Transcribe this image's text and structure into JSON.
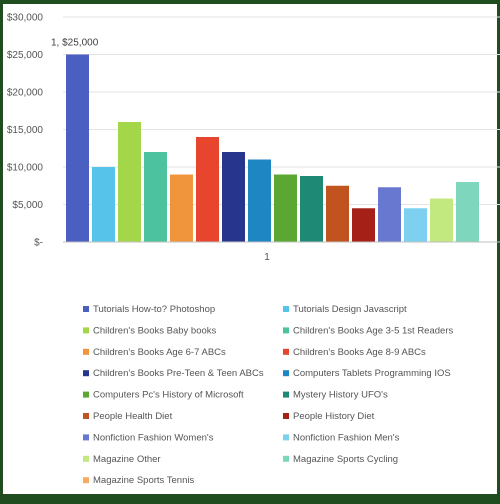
{
  "chart_data": {
    "type": "bar",
    "categories": [
      "1"
    ],
    "ylim": [
      0,
      30000
    ],
    "yticks": [
      {
        "value": 0,
        "label": "$-"
      },
      {
        "value": 5000,
        "label": "$5,000"
      },
      {
        "value": 10000,
        "label": "$10,000"
      },
      {
        "value": 15000,
        "label": "$15,000"
      },
      {
        "value": 20000,
        "label": "$20,000"
      },
      {
        "value": 25000,
        "label": "$25,000"
      },
      {
        "value": 30000,
        "label": "$30,000"
      }
    ],
    "grid": true,
    "legend_position": "bottom",
    "data_label": "1, $25,000",
    "series": [
      {
        "name": "Tutorials  How-to?  Photoshop",
        "values": [
          25000
        ],
        "color": "#4a5fc1"
      },
      {
        "name": "Tutorials  Design  Javascript",
        "values": [
          10000
        ],
        "color": "#55c3ea"
      },
      {
        "name": "Children's Books  Baby books",
        "values": [
          16000
        ],
        "color": "#a4d64a"
      },
      {
        "name": "Children's Books  Age 3-5  1st Readers",
        "values": [
          12000
        ],
        "color": "#4cc39e"
      },
      {
        "name": "Children's Books  Age 6-7  ABCs",
        "values": [
          9000
        ],
        "color": "#f0953b"
      },
      {
        "name": "Children's Books  Age 8-9   ABCs",
        "values": [
          14000
        ],
        "color": "#e8452f"
      },
      {
        "name": "Children's Books  Pre-Teen & Teen   ABCs",
        "values": [
          12000
        ],
        "color": "#27358c"
      },
      {
        "name": "Computers  Tablets   Programming IOS",
        "values": [
          11000
        ],
        "color": "#1f86c4"
      },
      {
        "name": "Computers  Pc's   History of Microsoft",
        "values": [
          9000
        ],
        "color": "#5aa832"
      },
      {
        "name": "Mystery  History  UFO's",
        "values": [
          8800
        ],
        "color": "#1e8a76"
      },
      {
        "name": "People  Health   Diet",
        "values": [
          7500
        ],
        "color": "#c1531f"
      },
      {
        "name": "People  History   Diet",
        "values": [
          4500
        ],
        "color": "#a52118"
      },
      {
        "name": "Nonfiction  Fashion   Women's",
        "values": [
          7300
        ],
        "color": "#6877cf"
      },
      {
        "name": "Nonfiction  Fashion   Men's",
        "values": [
          4500
        ],
        "color": "#7ed0f0"
      },
      {
        "name": "Magazine  Other",
        "values": [
          5800
        ],
        "color": "#c2e880"
      },
      {
        "name": "Magazine  Sports   Cycling",
        "values": [
          8000
        ],
        "color": "#7ed6bd"
      },
      {
        "name": "Magazine  Sports   Tennis",
        "values": [
          0
        ],
        "color": "#f5ab62"
      }
    ]
  }
}
